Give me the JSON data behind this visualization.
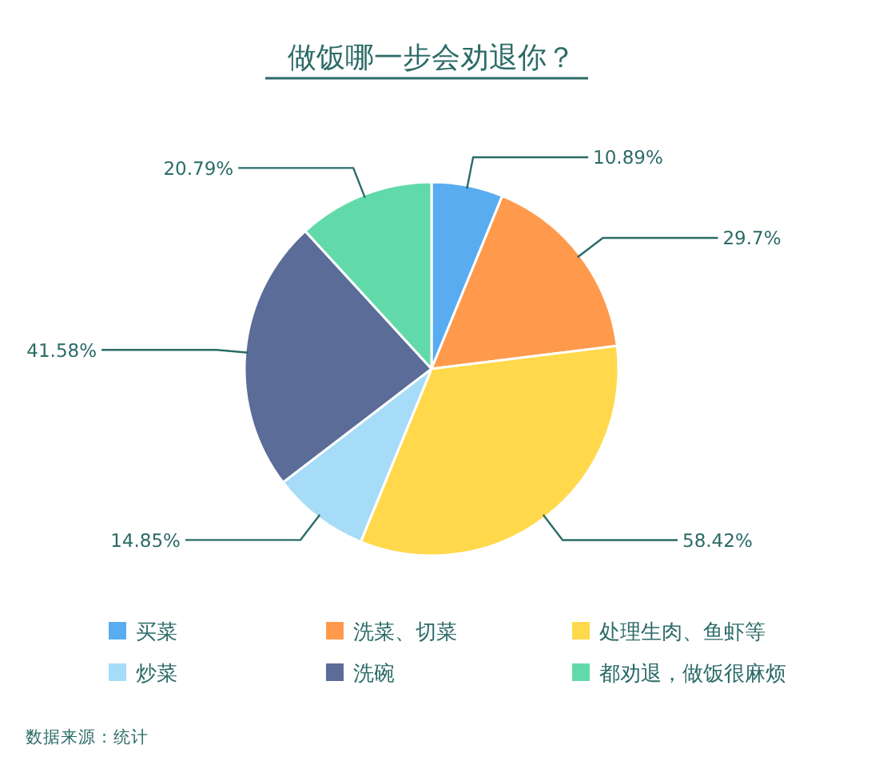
{
  "chart_data": {
    "type": "pie",
    "title": "做饭哪一步会劝退你？",
    "categories": [
      "买菜",
      "洗菜、切菜",
      "处理生肉、鱼虾等",
      "炒菜",
      "洗碗",
      "都劝退，做饭很麻烦"
    ],
    "values": [
      10.89,
      29.7,
      58.42,
      14.85,
      41.58,
      20.79
    ],
    "colors": [
      "#5aacf1",
      "#ff9a4c",
      "#ffd94b",
      "#a7dcf8",
      "#5a6c97",
      "#62d9a9"
    ],
    "value_labels": [
      "10.89%",
      "29.7%",
      "58.42%",
      "14.85%",
      "41.58%",
      "20.79%"
    ],
    "legend": "bottom",
    "annotations": [
      "数据来源：统计"
    ]
  }
}
